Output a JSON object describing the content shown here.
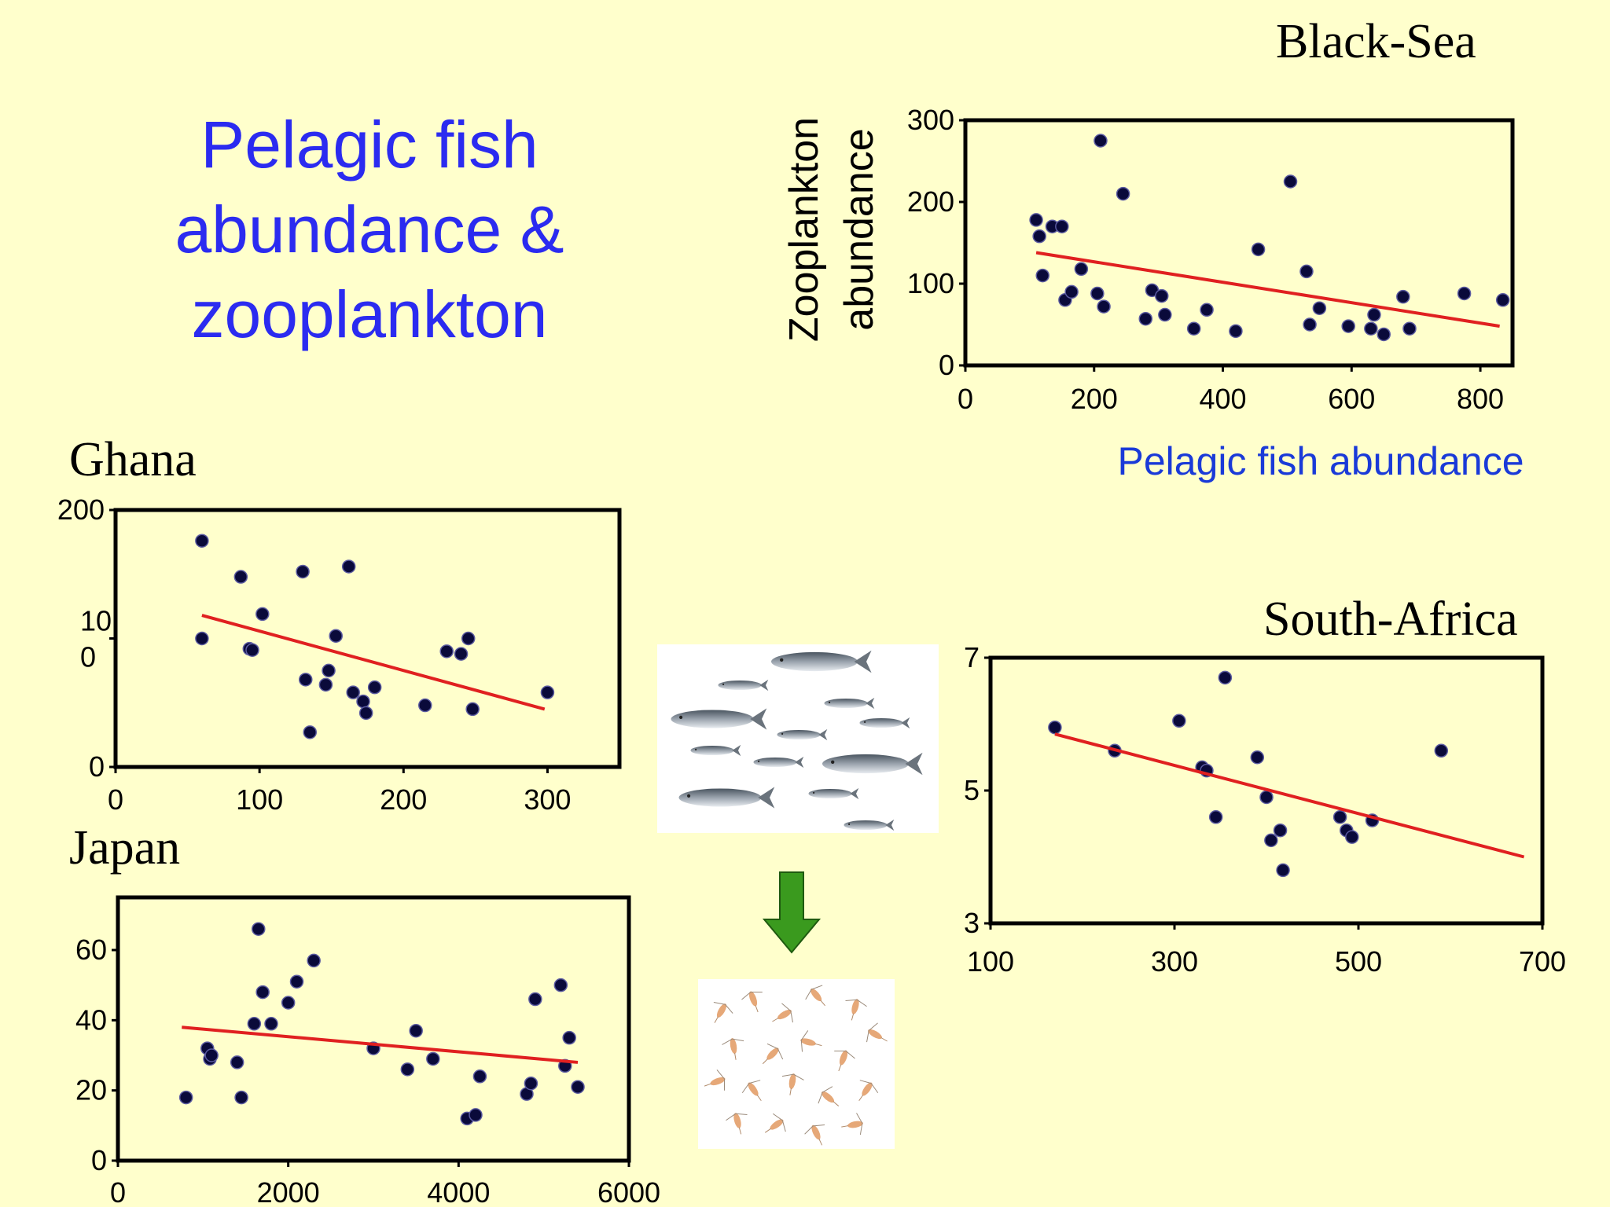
{
  "title": {
    "line1": "Pelagic fish",
    "line2": "abundance &",
    "line3": "zooplankton"
  },
  "colors": {
    "background": "#ffffcc",
    "title": "#2b2bf0",
    "point": "#0a0a3a",
    "trend": "#e02020",
    "arrow": "#3a9a1e"
  },
  "illustrations": {
    "fish": "sardine-school-icon",
    "arrow": "down-arrow-icon",
    "zooplankton": "copepod-swarm-icon"
  },
  "chart_data": [
    {
      "type": "scatter",
      "region": "Black-Sea",
      "xlabel": "Pelagic fish abundance",
      "ylabel_lines": [
        "Zooplankton",
        "abundance"
      ],
      "xlim": [
        0,
        850
      ],
      "ylim": [
        0,
        300
      ],
      "xticks": [
        "0",
        "200",
        "400",
        "600",
        "800"
      ],
      "xtick_values": [
        0,
        200,
        400,
        600,
        800
      ],
      "yticks": [
        "0",
        "100",
        "200",
        "300"
      ],
      "ytick_values": [
        0,
        100,
        200,
        300
      ],
      "points": [
        [
          110,
          178
        ],
        [
          115,
          158
        ],
        [
          120,
          110
        ],
        [
          135,
          170
        ],
        [
          150,
          170
        ],
        [
          155,
          80
        ],
        [
          165,
          90
        ],
        [
          180,
          118
        ],
        [
          205,
          88
        ],
        [
          210,
          275
        ],
        [
          215,
          72
        ],
        [
          245,
          210
        ],
        [
          280,
          57
        ],
        [
          290,
          92
        ],
        [
          305,
          85
        ],
        [
          310,
          62
        ],
        [
          355,
          45
        ],
        [
          375,
          68
        ],
        [
          420,
          42
        ],
        [
          455,
          142
        ],
        [
          505,
          225
        ],
        [
          530,
          115
        ],
        [
          535,
          50
        ],
        [
          550,
          70
        ],
        [
          595,
          48
        ],
        [
          630,
          45
        ],
        [
          635,
          62
        ],
        [
          650,
          38
        ],
        [
          680,
          84
        ],
        [
          690,
          45
        ],
        [
          775,
          88
        ],
        [
          835,
          80
        ]
      ],
      "trend": [
        [
          110,
          138
        ],
        [
          830,
          48
        ]
      ]
    },
    {
      "type": "scatter",
      "region": "Ghana",
      "xlabel": "",
      "ylabel_lines": [],
      "xlim": [
        0,
        350
      ],
      "ylim": [
        0,
        200
      ],
      "xticks": [
        "0",
        "100",
        "200",
        "300"
      ],
      "xtick_values": [
        0,
        100,
        200,
        300
      ],
      "yticks": [
        "0",
        "10\n0",
        "200"
      ],
      "ytick_values": [
        0,
        100,
        200
      ],
      "points": [
        [
          60,
          176
        ],
        [
          60,
          100
        ],
        [
          87,
          148
        ],
        [
          93,
          92
        ],
        [
          95,
          91
        ],
        [
          102,
          119
        ],
        [
          130,
          152
        ],
        [
          132,
          68
        ],
        [
          135,
          27
        ],
        [
          146,
          64
        ],
        [
          148,
          75
        ],
        [
          153,
          102
        ],
        [
          162,
          156
        ],
        [
          165,
          58
        ],
        [
          172,
          51
        ],
        [
          174,
          42
        ],
        [
          180,
          62
        ],
        [
          215,
          48
        ],
        [
          230,
          90
        ],
        [
          240,
          88
        ],
        [
          245,
          100
        ],
        [
          248,
          45
        ],
        [
          300,
          58
        ]
      ],
      "trend": [
        [
          60,
          118
        ],
        [
          298,
          45
        ]
      ]
    },
    {
      "type": "scatter",
      "region": "Japan",
      "xlabel": "",
      "ylabel_lines": [],
      "xlim": [
        0,
        6000
      ],
      "ylim": [
        0,
        75
      ],
      "xticks": [
        "0",
        "2000",
        "4000",
        "6000"
      ],
      "xtick_values": [
        0,
        2000,
        4000,
        6000
      ],
      "yticks": [
        "0",
        "20",
        "40",
        "60"
      ],
      "ytick_values": [
        0,
        20,
        40,
        60
      ],
      "points": [
        [
          800,
          18
        ],
        [
          1050,
          32
        ],
        [
          1080,
          29
        ],
        [
          1100,
          30
        ],
        [
          1400,
          28
        ],
        [
          1450,
          18
        ],
        [
          1600,
          39
        ],
        [
          1650,
          66
        ],
        [
          1700,
          48
        ],
        [
          1800,
          39
        ],
        [
          2000,
          45
        ],
        [
          2100,
          51
        ],
        [
          2300,
          57
        ],
        [
          3000,
          32
        ],
        [
          3400,
          26
        ],
        [
          3500,
          37
        ],
        [
          3700,
          29
        ],
        [
          4100,
          12
        ],
        [
          4200,
          13
        ],
        [
          4250,
          24
        ],
        [
          4800,
          19
        ],
        [
          4850,
          22
        ],
        [
          4900,
          46
        ],
        [
          5200,
          50
        ],
        [
          5250,
          27
        ],
        [
          5300,
          35
        ],
        [
          5400,
          21
        ]
      ],
      "trend": [
        [
          750,
          38
        ],
        [
          5400,
          28
        ]
      ]
    },
    {
      "type": "scatter",
      "region": "South-Africa",
      "xlabel": "",
      "ylabel_lines": [],
      "xlim": [
        100,
        700
      ],
      "ylim": [
        3,
        7
      ],
      "xticks": [
        "100",
        "300",
        "500",
        "700"
      ],
      "xtick_values": [
        100,
        300,
        500,
        700
      ],
      "yticks": [
        "3",
        "5",
        "7"
      ],
      "ytick_values": [
        3,
        5,
        7
      ],
      "points": [
        [
          170,
          5.95
        ],
        [
          235,
          5.6
        ],
        [
          305,
          6.05
        ],
        [
          330,
          5.35
        ],
        [
          335,
          5.3
        ],
        [
          345,
          4.6
        ],
        [
          355,
          6.7
        ],
        [
          390,
          5.5
        ],
        [
          400,
          4.9
        ],
        [
          405,
          4.25
        ],
        [
          415,
          4.4
        ],
        [
          418,
          3.8
        ],
        [
          480,
          4.6
        ],
        [
          487,
          4.4
        ],
        [
          493,
          4.3
        ],
        [
          515,
          4.55
        ],
        [
          590,
          5.6
        ]
      ],
      "trend": [
        [
          170,
          5.85
        ],
        [
          680,
          4.0
        ]
      ]
    }
  ]
}
